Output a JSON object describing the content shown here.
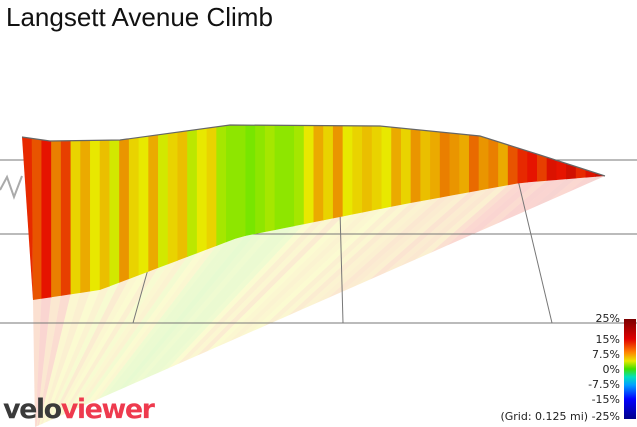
{
  "title": "Langsett Avenue Climb",
  "legend": {
    "labels": [
      "25%",
      "15%",
      "7.5%",
      "0%",
      "-7.5%",
      "-15%",
      "-25%"
    ],
    "grid_note": "(Grid: 0.125 mi)",
    "colors": {
      "max": "#7a0000",
      "high": "#e00000",
      "mid_high": "#ff8000",
      "low_mid": "#e8e800",
      "zero": "#40e000",
      "neg": "#00a0ff",
      "min": "#00008a"
    }
  },
  "logo": {
    "part1": "velo",
    "part2": "viewer"
  },
  "chart_data": {
    "type": "area",
    "title": "Langsett Avenue Climb",
    "description_scale": "gradient color coded",
    "color_range_percent": [
      -25,
      25
    ],
    "grid_spacing": "0.125 mi",
    "gradient_segments_percent": [
      14,
      12,
      15,
      10,
      13,
      6,
      8,
      5,
      7,
      4,
      9,
      6,
      5,
      8,
      4,
      6,
      7,
      3,
      5,
      6,
      2,
      1,
      1,
      0,
      1,
      2,
      1,
      1,
      2,
      5,
      8,
      6,
      9,
      5,
      6,
      7,
      6,
      5,
      8,
      6,
      9,
      7,
      8,
      10,
      9,
      8,
      11,
      9,
      10,
      8,
      12,
      14,
      15,
      13,
      16,
      15,
      17,
      14,
      16,
      18
    ]
  }
}
